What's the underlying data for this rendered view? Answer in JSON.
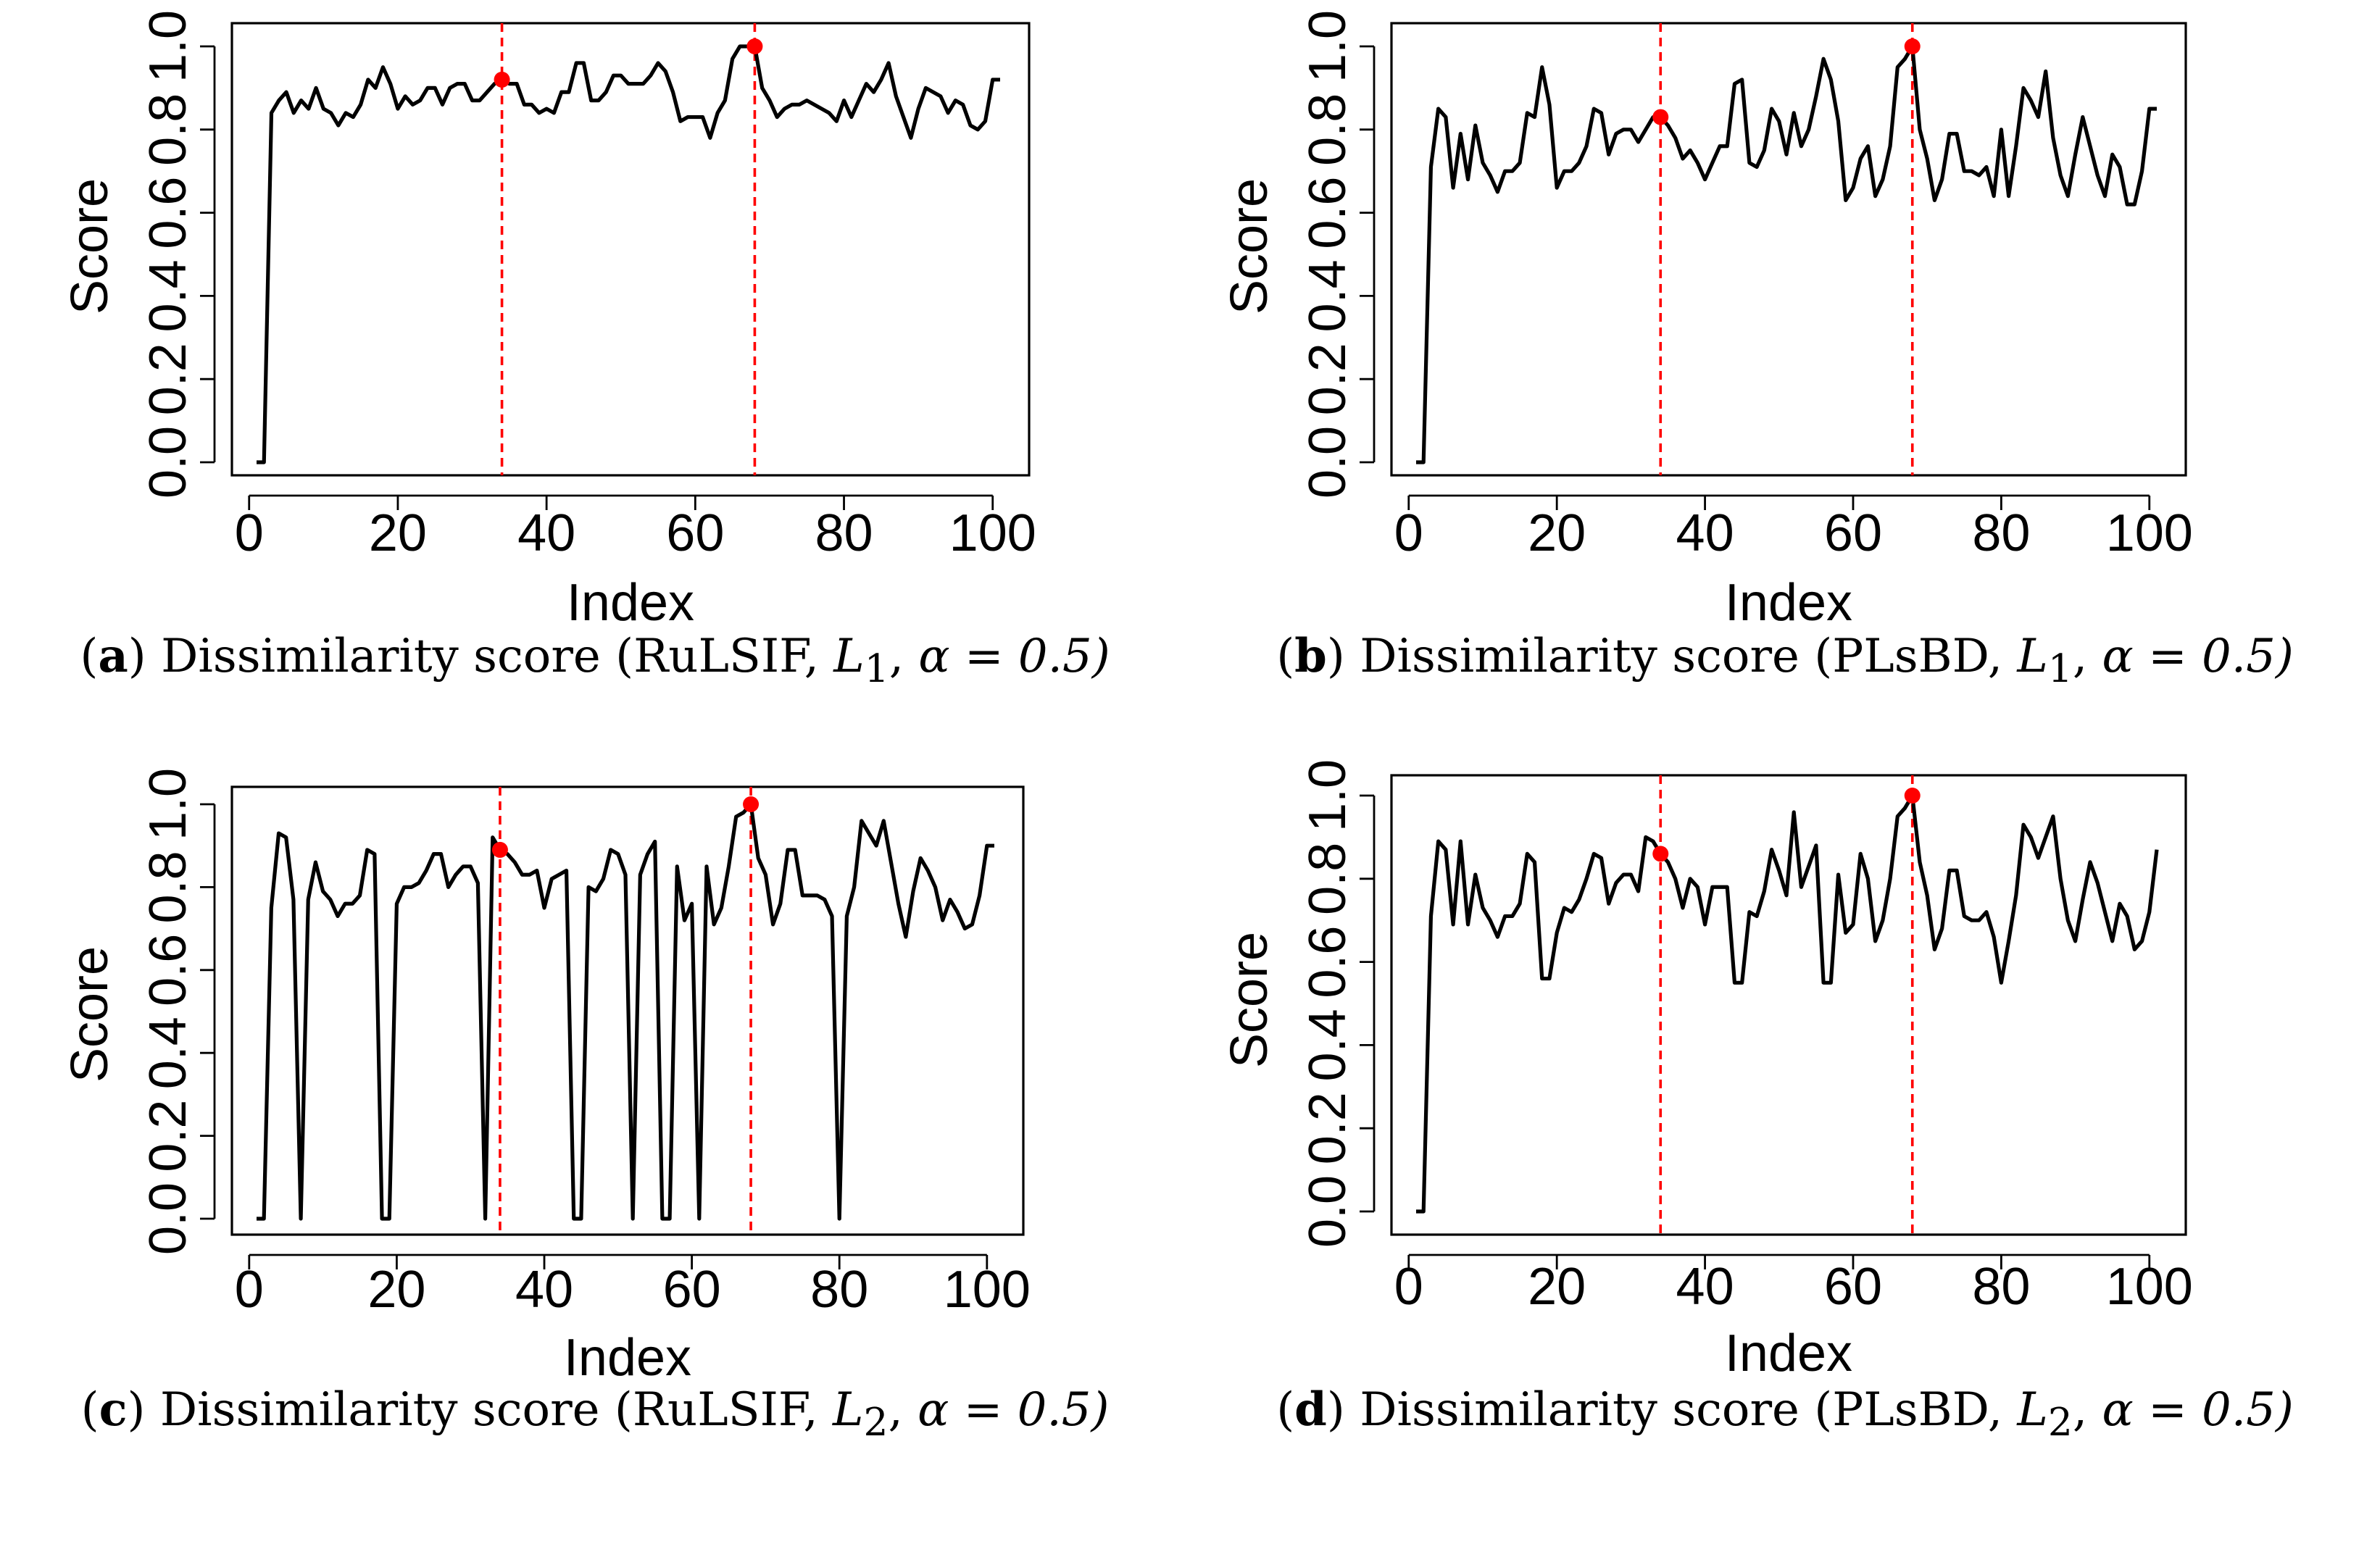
{
  "colors": {
    "line": "#000000",
    "marker": "#ff0000",
    "cut": "#ff0000"
  },
  "chart_data": [
    {
      "type": "line",
      "panel_label": "a",
      "caption_text": "Dissimilarity score (RuLSIF, ",
      "caption_norm": "L",
      "caption_sub": "1",
      "caption_alpha": "α = 0.5)",
      "xlabel": "Index",
      "ylabel": "Score",
      "xlim": [
        1,
        101
      ],
      "ylim": [
        0,
        1
      ],
      "xticks": [
        "0",
        "20",
        "40",
        "60",
        "80",
        "100"
      ],
      "yticks": [
        "0.0",
        "0.2",
        "0.4",
        "0.6",
        "0.8",
        "1.0"
      ],
      "change_points": [
        34,
        68
      ],
      "marker_values": [
        0.92,
        1.0
      ],
      "values": [
        0,
        0,
        0.84,
        0.87,
        0.89,
        0.84,
        0.87,
        0.85,
        0.9,
        0.85,
        0.84,
        0.81,
        0.84,
        0.83,
        0.86,
        0.92,
        0.9,
        0.95,
        0.91,
        0.85,
        0.88,
        0.86,
        0.87,
        0.9,
        0.9,
        0.86,
        0.9,
        0.91,
        0.91,
        0.87,
        0.87,
        0.89,
        0.91,
        0.92,
        0.91,
        0.91,
        0.86,
        0.86,
        0.84,
        0.85,
        0.84,
        0.89,
        0.89,
        0.96,
        0.96,
        0.87,
        0.87,
        0.89,
        0.93,
        0.93,
        0.91,
        0.91,
        0.91,
        0.93,
        0.96,
        0.94,
        0.89,
        0.82,
        0.83,
        0.83,
        0.83,
        0.78,
        0.84,
        0.87,
        0.97,
        1.0,
        1.0,
        1.0,
        0.9,
        0.87,
        0.83,
        0.85,
        0.86,
        0.86,
        0.87,
        0.86,
        0.85,
        0.84,
        0.82,
        0.87,
        0.83,
        0.87,
        0.91,
        0.89,
        0.92,
        0.96,
        0.88,
        0.83,
        0.78,
        0.85,
        0.9,
        0.89,
        0.88,
        0.84,
        0.87,
        0.86,
        0.81,
        0.8,
        0.82,
        0.92,
        0.92
      ]
    },
    {
      "type": "line",
      "panel_label": "b",
      "caption_text": "Dissimilarity score (PLsBD, ",
      "caption_norm": "L",
      "caption_sub": "1",
      "caption_alpha": "α = 0.5)",
      "xlabel": "Index",
      "ylabel": "Score",
      "xlim": [
        1,
        101
      ],
      "ylim": [
        0,
        1
      ],
      "xticks": [
        "0",
        "20",
        "40",
        "60",
        "80",
        "100"
      ],
      "yticks": [
        "0.0",
        "0.2",
        "0.4",
        "0.6",
        "0.8",
        "1.0"
      ],
      "change_points": [
        34,
        68
      ],
      "marker_values": [
        0.83,
        1.0
      ],
      "values": [
        0,
        0,
        0.71,
        0.85,
        0.83,
        0.66,
        0.79,
        0.68,
        0.81,
        0.72,
        0.69,
        0.65,
        0.7,
        0.7,
        0.72,
        0.84,
        0.83,
        0.95,
        0.86,
        0.66,
        0.7,
        0.7,
        0.72,
        0.76,
        0.85,
        0.84,
        0.74,
        0.79,
        0.8,
        0.8,
        0.77,
        0.8,
        0.83,
        0.83,
        0.81,
        0.78,
        0.73,
        0.75,
        0.72,
        0.68,
        0.72,
        0.76,
        0.76,
        0.91,
        0.92,
        0.72,
        0.71,
        0.75,
        0.85,
        0.82,
        0.74,
        0.84,
        0.76,
        0.8,
        0.88,
        0.97,
        0.92,
        0.82,
        0.63,
        0.66,
        0.73,
        0.76,
        0.64,
        0.68,
        0.76,
        0.95,
        0.97,
        1.0,
        0.8,
        0.73,
        0.63,
        0.68,
        0.79,
        0.79,
        0.7,
        0.7,
        0.69,
        0.71,
        0.64,
        0.8,
        0.64,
        0.76,
        0.9,
        0.87,
        0.83,
        0.94,
        0.78,
        0.69,
        0.64,
        0.74,
        0.83,
        0.76,
        0.69,
        0.64,
        0.74,
        0.71,
        0.62,
        0.62,
        0.7,
        0.85,
        0.85
      ]
    },
    {
      "type": "line",
      "panel_label": "c",
      "caption_text": "Dissimilarity score (RuLSIF, ",
      "caption_norm": "L",
      "caption_sub": "2",
      "caption_alpha": "α = 0.5)",
      "xlabel": "Index",
      "ylabel": "Score",
      "xlim": [
        1,
        101
      ],
      "ylim": [
        0,
        1
      ],
      "xticks": [
        "0",
        "20",
        "40",
        "60",
        "80",
        "100"
      ],
      "yticks": [
        "0.0",
        "0.2",
        "0.4",
        "0.6",
        "0.8",
        "1.0"
      ],
      "change_points": [
        34,
        68
      ],
      "marker_values": [
        0.89,
        1.0
      ],
      "values": [
        0,
        0,
        0.75,
        0.93,
        0.92,
        0.77,
        0,
        0.77,
        0.86,
        0.79,
        0.77,
        0.73,
        0.76,
        0.76,
        0.78,
        0.89,
        0.88,
        0,
        0,
        0.76,
        0.8,
        0.8,
        0.81,
        0.84,
        0.88,
        0.88,
        0.8,
        0.83,
        0.85,
        0.85,
        0.81,
        0,
        0.92,
        0.89,
        0.88,
        0.86,
        0.83,
        0.83,
        0.84,
        0.75,
        0.82,
        0.83,
        0.84,
        0,
        0,
        0.8,
        0.79,
        0.82,
        0.89,
        0.88,
        0.83,
        0,
        0.83,
        0.88,
        0.91,
        0,
        0,
        0.85,
        0.72,
        0.76,
        0,
        0.85,
        0.71,
        0.75,
        0.85,
        0.97,
        0.98,
        1.0,
        0.87,
        0.83,
        0.71,
        0.76,
        0.89,
        0.89,
        0.78,
        0.78,
        0.78,
        0.77,
        0.73,
        0,
        0.73,
        0.8,
        0.96,
        0.93,
        0.9,
        0.96,
        0.86,
        0.76,
        0.68,
        0.79,
        0.87,
        0.84,
        0.8,
        0.72,
        0.77,
        0.74,
        0.7,
        0.71,
        0.78,
        0.9,
        0.9
      ]
    },
    {
      "type": "line",
      "panel_label": "d",
      "caption_text": "Dissimilarity score (PLsBD, ",
      "caption_norm": "L",
      "caption_sub": "2",
      "caption_alpha": "α = 0.5)",
      "xlabel": "Index",
      "ylabel": "Score",
      "xlim": [
        1,
        101
      ],
      "ylim": [
        0,
        1
      ],
      "xticks": [
        "0",
        "20",
        "40",
        "60",
        "80",
        "100"
      ],
      "yticks": [
        "0.0",
        "0.2",
        "0.4",
        "0.6",
        "0.8",
        "1.0"
      ],
      "change_points": [
        34,
        68
      ],
      "marker_values": [
        0.86,
        1.0
      ],
      "values": [
        0,
        0,
        0.71,
        0.89,
        0.87,
        0.69,
        0.89,
        0.69,
        0.81,
        0.73,
        0.7,
        0.66,
        0.71,
        0.71,
        0.74,
        0.86,
        0.84,
        0.56,
        0.56,
        0.67,
        0.73,
        0.72,
        0.75,
        0.8,
        0.86,
        0.85,
        0.74,
        0.79,
        0.81,
        0.81,
        0.77,
        0.9,
        0.89,
        0.86,
        0.84,
        0.8,
        0.73,
        0.8,
        0.78,
        0.69,
        0.78,
        0.78,
        0.78,
        0.55,
        0.55,
        0.72,
        0.71,
        0.77,
        0.87,
        0.82,
        0.76,
        0.96,
        0.78,
        0.83,
        0.88,
        0.55,
        0.55,
        0.81,
        0.67,
        0.69,
        0.86,
        0.8,
        0.65,
        0.7,
        0.8,
        0.95,
        0.97,
        1.0,
        0.84,
        0.76,
        0.63,
        0.68,
        0.82,
        0.82,
        0.71,
        0.7,
        0.7,
        0.72,
        0.66,
        0.55,
        0.65,
        0.76,
        0.93,
        0.9,
        0.85,
        0.9,
        0.95,
        0.8,
        0.7,
        0.65,
        0.75,
        0.84,
        0.79,
        0.72,
        0.65,
        0.74,
        0.71,
        0.63,
        0.65,
        0.72,
        0.87
      ]
    }
  ]
}
